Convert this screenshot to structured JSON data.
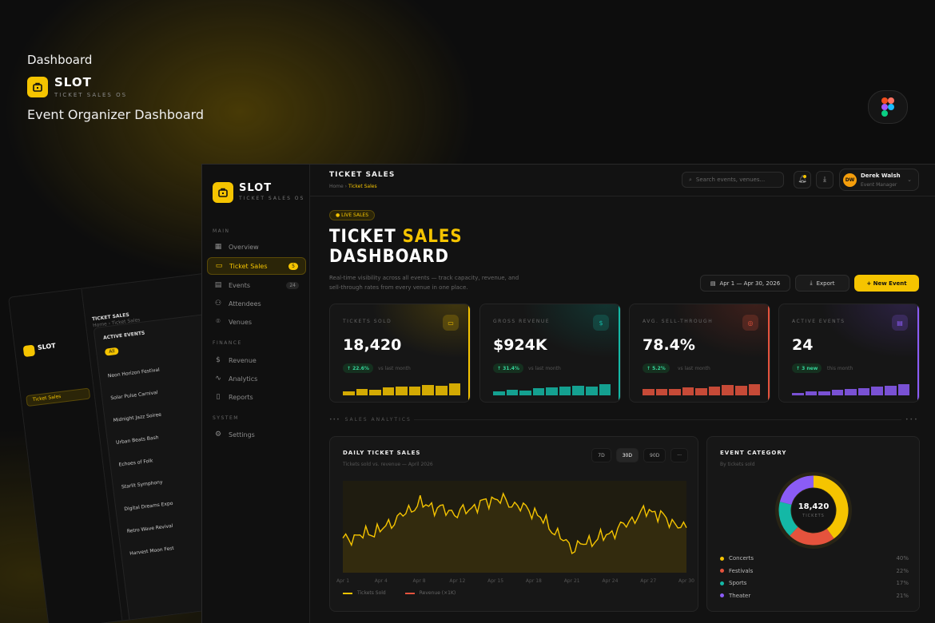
{
  "hero": {
    "title": "Dashboard",
    "brand": "SLOT",
    "brand_sub": "TICKET SALES OS",
    "description": "Event Organizer Dashboard"
  },
  "colors": {
    "accent": "#f5c400",
    "teal": "#14b8a6",
    "red": "#e5533d",
    "purple": "#8b5cf6",
    "background": "#0d0d0d"
  },
  "back_card": {
    "page": "TICKET SALES",
    "crumb": "Home › Ticket Sales",
    "panel_title": "ACTIVE EVENTS",
    "filter": "All",
    "events": [
      "Neon Horizon Festival",
      "Solar Pulse Carnival",
      "Midnight Jazz Soiree",
      "Urban Beats Bash",
      "Echoes of Folk",
      "Starlit Symphony",
      "Digital Dreams Expo",
      "Retro Wave Revival",
      "Harvest Moon Fest"
    ]
  },
  "sidebar": {
    "brand": "SLOT",
    "brand_sub": "TICKET SALES OS",
    "sections": {
      "main": "MAIN",
      "finance": "FINANCE",
      "system": "SYSTEM"
    },
    "items": [
      {
        "label": "Overview",
        "icon": "grid-icon"
      },
      {
        "label": "Ticket Sales",
        "icon": "ticket-icon",
        "badge": "5",
        "active": true
      },
      {
        "label": "Events",
        "icon": "calendar-icon",
        "badge": "24"
      },
      {
        "label": "Attendees",
        "icon": "users-icon"
      },
      {
        "label": "Venues",
        "icon": "pin-icon"
      },
      {
        "label": "Revenue",
        "icon": "dollar-icon"
      },
      {
        "label": "Analytics",
        "icon": "trend-icon"
      },
      {
        "label": "Reports",
        "icon": "doc-icon"
      },
      {
        "label": "Settings",
        "icon": "gear-icon"
      }
    ]
  },
  "topbar": {
    "page_title": "TICKET SALES",
    "crumb_home": "Home",
    "crumb_current": "Ticket Sales",
    "search_placeholder": "Search events, venues...",
    "user_name": "Derek Walsh",
    "user_role": "Event Manager",
    "user_initials": "DW"
  },
  "header": {
    "live_badge": "● LIVE SALES",
    "title_1": "TICKET",
    "title_1_hl": "SALES",
    "title_2": "DASHBOARD",
    "description": "Real-time visibility across all events — track capacity, revenue, and sell-through rates from every venue in one place.",
    "date_range": "Apr 1 — Apr 30, 2026",
    "export_label": "Export",
    "new_event_label": "+ New Event"
  },
  "kpis": [
    {
      "label": "TICKETS SOLD",
      "value": "18,420",
      "change": "↑ 22.6%",
      "vs": "vs last month",
      "color": "#f5c400",
      "bars": [
        0.25,
        0.35,
        0.32,
        0.45,
        0.48,
        0.5,
        0.6,
        0.55,
        0.7
      ]
    },
    {
      "label": "GROSS REVENUE",
      "value": "$924K",
      "change": "↑ 31.4%",
      "vs": "vs last month",
      "color": "#14b8a6",
      "bars": [
        0.25,
        0.3,
        0.28,
        0.4,
        0.45,
        0.5,
        0.55,
        0.5,
        0.65
      ]
    },
    {
      "label": "AVG. SELL-THROUGH",
      "value": "78.4%",
      "change": "↑ 5.2%",
      "vs": "vs last month",
      "color": "#e5533d",
      "bars": [
        0.35,
        0.38,
        0.36,
        0.45,
        0.42,
        0.5,
        0.58,
        0.55,
        0.62
      ]
    },
    {
      "label": "ACTIVE EVENTS",
      "value": "24",
      "change": "↑ 3 new",
      "vs": "this month",
      "color": "#8b5cf6",
      "bars": [
        0.15,
        0.22,
        0.25,
        0.3,
        0.35,
        0.4,
        0.5,
        0.55,
        0.65
      ]
    }
  ],
  "section_label": "SALES ANALYTICS",
  "daily": {
    "title": "DAILY TICKET SALES",
    "subtitle": "Tickets sold vs. revenue — April 2026",
    "ranges": [
      "7D",
      "30D",
      "90D"
    ],
    "active_range": "30D",
    "legend_1": "Tickets Sold",
    "legend_2": "Revenue (×1K)"
  },
  "chart_data": {
    "type": "line",
    "x": [
      "Apr 1",
      "Apr 4",
      "Apr 8",
      "Apr 12",
      "Apr 15",
      "Apr 18",
      "Apr 21",
      "Apr 24",
      "Apr 27",
      "Apr 30"
    ],
    "series": [
      {
        "name": "Tickets Sold",
        "values": [
          560,
          610,
          740,
          690,
          765,
          700,
          520,
          590,
          710,
          610
        ]
      }
    ],
    "ylim": [
      400,
      850
    ],
    "grid": false,
    "legend": "bottom-left"
  },
  "category": {
    "title": "EVENT CATEGORY",
    "subtitle": "By tickets sold",
    "center_value": "18,420",
    "center_label": "TICKETS",
    "items": [
      {
        "name": "Concerts",
        "pct": "40%",
        "value": 40,
        "color": "#f5c400"
      },
      {
        "name": "Festivals",
        "pct": "22%",
        "value": 22,
        "color": "#e5533d"
      },
      {
        "name": "Sports",
        "pct": "17%",
        "value": 17,
        "color": "#14b8a6"
      },
      {
        "name": "Theater",
        "pct": "21%",
        "value": 21,
        "color": "#8b5cf6"
      }
    ]
  }
}
